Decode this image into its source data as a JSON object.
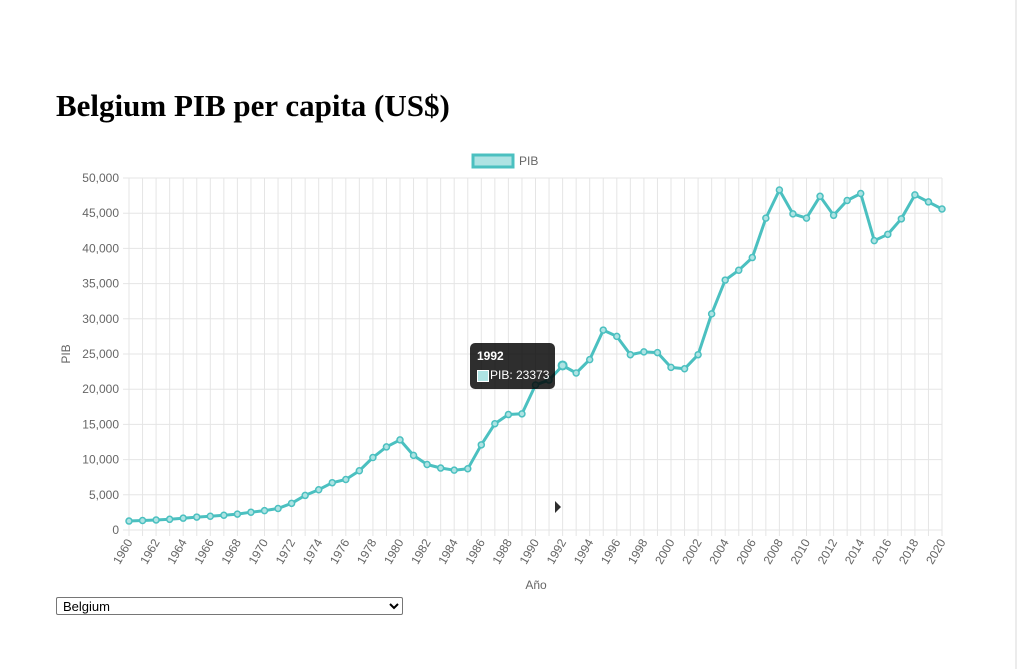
{
  "page": {
    "title": "Belgium PIB per capita (US$)"
  },
  "country_select": {
    "selected": "Belgium",
    "options": [
      "Belgium"
    ]
  },
  "colors": {
    "line": "#4bc0c0",
    "fill": "#aee3e3",
    "grid": "#e5e5e5",
    "tick_text": "#666666"
  },
  "tooltip": {
    "title": "1992",
    "body": "PIB: 23373"
  },
  "chart_data": {
    "type": "line",
    "legend": {
      "label": "PIB",
      "position": "top"
    },
    "xlabel": "Año",
    "ylabel": "PIB",
    "ylim": [
      0,
      50000
    ],
    "yticks": [
      0,
      5000,
      10000,
      15000,
      20000,
      25000,
      30000,
      35000,
      40000,
      45000,
      50000
    ],
    "ytick_labels": [
      "0",
      "5,000",
      "10,000",
      "15,000",
      "20,000",
      "25,000",
      "30,000",
      "35,000",
      "40,000",
      "45,000",
      "50,000"
    ],
    "grid": true,
    "x": [
      1960,
      1961,
      1962,
      1963,
      1964,
      1965,
      1966,
      1967,
      1968,
      1969,
      1970,
      1971,
      1972,
      1973,
      1974,
      1975,
      1976,
      1977,
      1978,
      1979,
      1980,
      1981,
      1982,
      1983,
      1984,
      1985,
      1986,
      1987,
      1988,
      1989,
      1990,
      1991,
      1992,
      1993,
      1994,
      1995,
      1996,
      1997,
      1998,
      1999,
      2000,
      2001,
      2002,
      2003,
      2004,
      2005,
      2006,
      2007,
      2008,
      2009,
      2010,
      2011,
      2012,
      2013,
      2014,
      2015,
      2016,
      2017,
      2018,
      2019,
      2020
    ],
    "xtick_labels": [
      "1960",
      "1962",
      "1964",
      "1966",
      "1968",
      "1970",
      "1972",
      "1974",
      "1976",
      "1978",
      "1980",
      "1982",
      "1984",
      "1986",
      "1988",
      "1990",
      "1992",
      "1994",
      "1996",
      "1998",
      "2000",
      "2002",
      "2004",
      "2006",
      "2008",
      "2010",
      "2012",
      "2014",
      "2016",
      "2018",
      "2020"
    ],
    "series": [
      {
        "name": "PIB",
        "values": [
          1273,
          1350,
          1425,
          1520,
          1680,
          1835,
          1955,
          2100,
          2260,
          2530,
          2750,
          3050,
          3790,
          4910,
          5720,
          6720,
          7170,
          8420,
          10300,
          11800,
          12800,
          10600,
          9300,
          8800,
          8500,
          8700,
          12100,
          15100,
          16400,
          16500,
          20600,
          21300,
          23373,
          22300,
          24200,
          28400,
          27500,
          24900,
          25300,
          25200,
          23100,
          22900,
          24900,
          30700,
          35500,
          36900,
          38700,
          44300,
          48300,
          44900,
          44300,
          47400,
          44700,
          46800,
          47800,
          41100,
          42000,
          44200,
          47600,
          46600,
          45600
        ]
      }
    ]
  }
}
